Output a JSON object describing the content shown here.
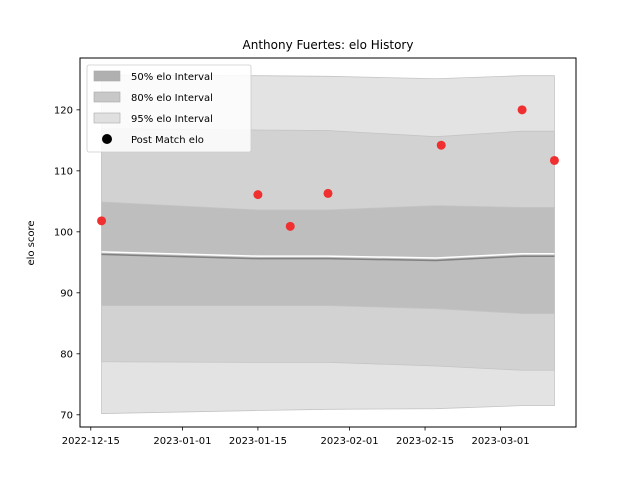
{
  "chart_data": {
    "type": "line",
    "title": "Anthony  Fuertes: elo History",
    "xlabel": "",
    "ylabel": "elo score",
    "x_ticks": [
      "2022-12-15",
      "2023-01-01",
      "2023-01-15",
      "2023-02-01",
      "2023-02-15",
      "2023-03-01"
    ],
    "y_ticks": [
      70,
      80,
      90,
      100,
      110,
      120
    ],
    "xlim": [
      "2022-12-13",
      "2023-03-15"
    ],
    "ylim": [
      68,
      128.5
    ],
    "grid": false,
    "legend_position": "top-left",
    "legend": [
      {
        "label": "50% elo Interval",
        "color": "#b0b0b0",
        "kind": "patch"
      },
      {
        "label": "80% elo Interval",
        "color": "#c8c8c8",
        "kind": "patch"
      },
      {
        "label": "95% elo Interval",
        "color": "#e0e0e0",
        "kind": "patch"
      },
      {
        "label": "Post Match elo",
        "color": "#000000",
        "kind": "marker"
      }
    ],
    "band_dates": [
      "2022-12-17",
      "2023-01-15",
      "2023-01-28",
      "2023-02-17",
      "2023-03-05",
      "2023-03-11"
    ],
    "bands": {
      "p95": {
        "lower": [
          70.2,
          70.7,
          70.9,
          71.0,
          71.5,
          71.5
        ],
        "upper": [
          125.7,
          125.6,
          125.5,
          125.1,
          125.6,
          125.6
        ]
      },
      "p80": {
        "lower": [
          78.7,
          78.6,
          78.6,
          78.0,
          77.3,
          77.3
        ],
        "upper": [
          116.9,
          116.7,
          116.6,
          115.6,
          116.5,
          116.5
        ]
      },
      "p50": {
        "lower": [
          87.9,
          87.9,
          87.9,
          87.4,
          86.6,
          86.6
        ],
        "upper": [
          104.9,
          103.6,
          103.6,
          104.3,
          104.0,
          104.0
        ]
      }
    },
    "mean_line": [
      96.3,
      95.6,
      95.6,
      95.3,
      96.0,
      96.0
    ],
    "points": [
      {
        "date": "2022-12-17",
        "elo": 101.8
      },
      {
        "date": "2023-01-15",
        "elo": 106.1
      },
      {
        "date": "2023-01-21",
        "elo": 100.9
      },
      {
        "date": "2023-01-28",
        "elo": 106.3
      },
      {
        "date": "2023-02-18",
        "elo": 114.2
      },
      {
        "date": "2023-03-05",
        "elo": 120.0
      },
      {
        "date": "2023-03-11",
        "elo": 111.7
      }
    ],
    "colors": {
      "band95": "#e3e3e3",
      "band80": "#d2d2d2",
      "band50": "#bebebe",
      "mean": "#808080",
      "point": "#f03030",
      "axis": "#000000"
    }
  }
}
